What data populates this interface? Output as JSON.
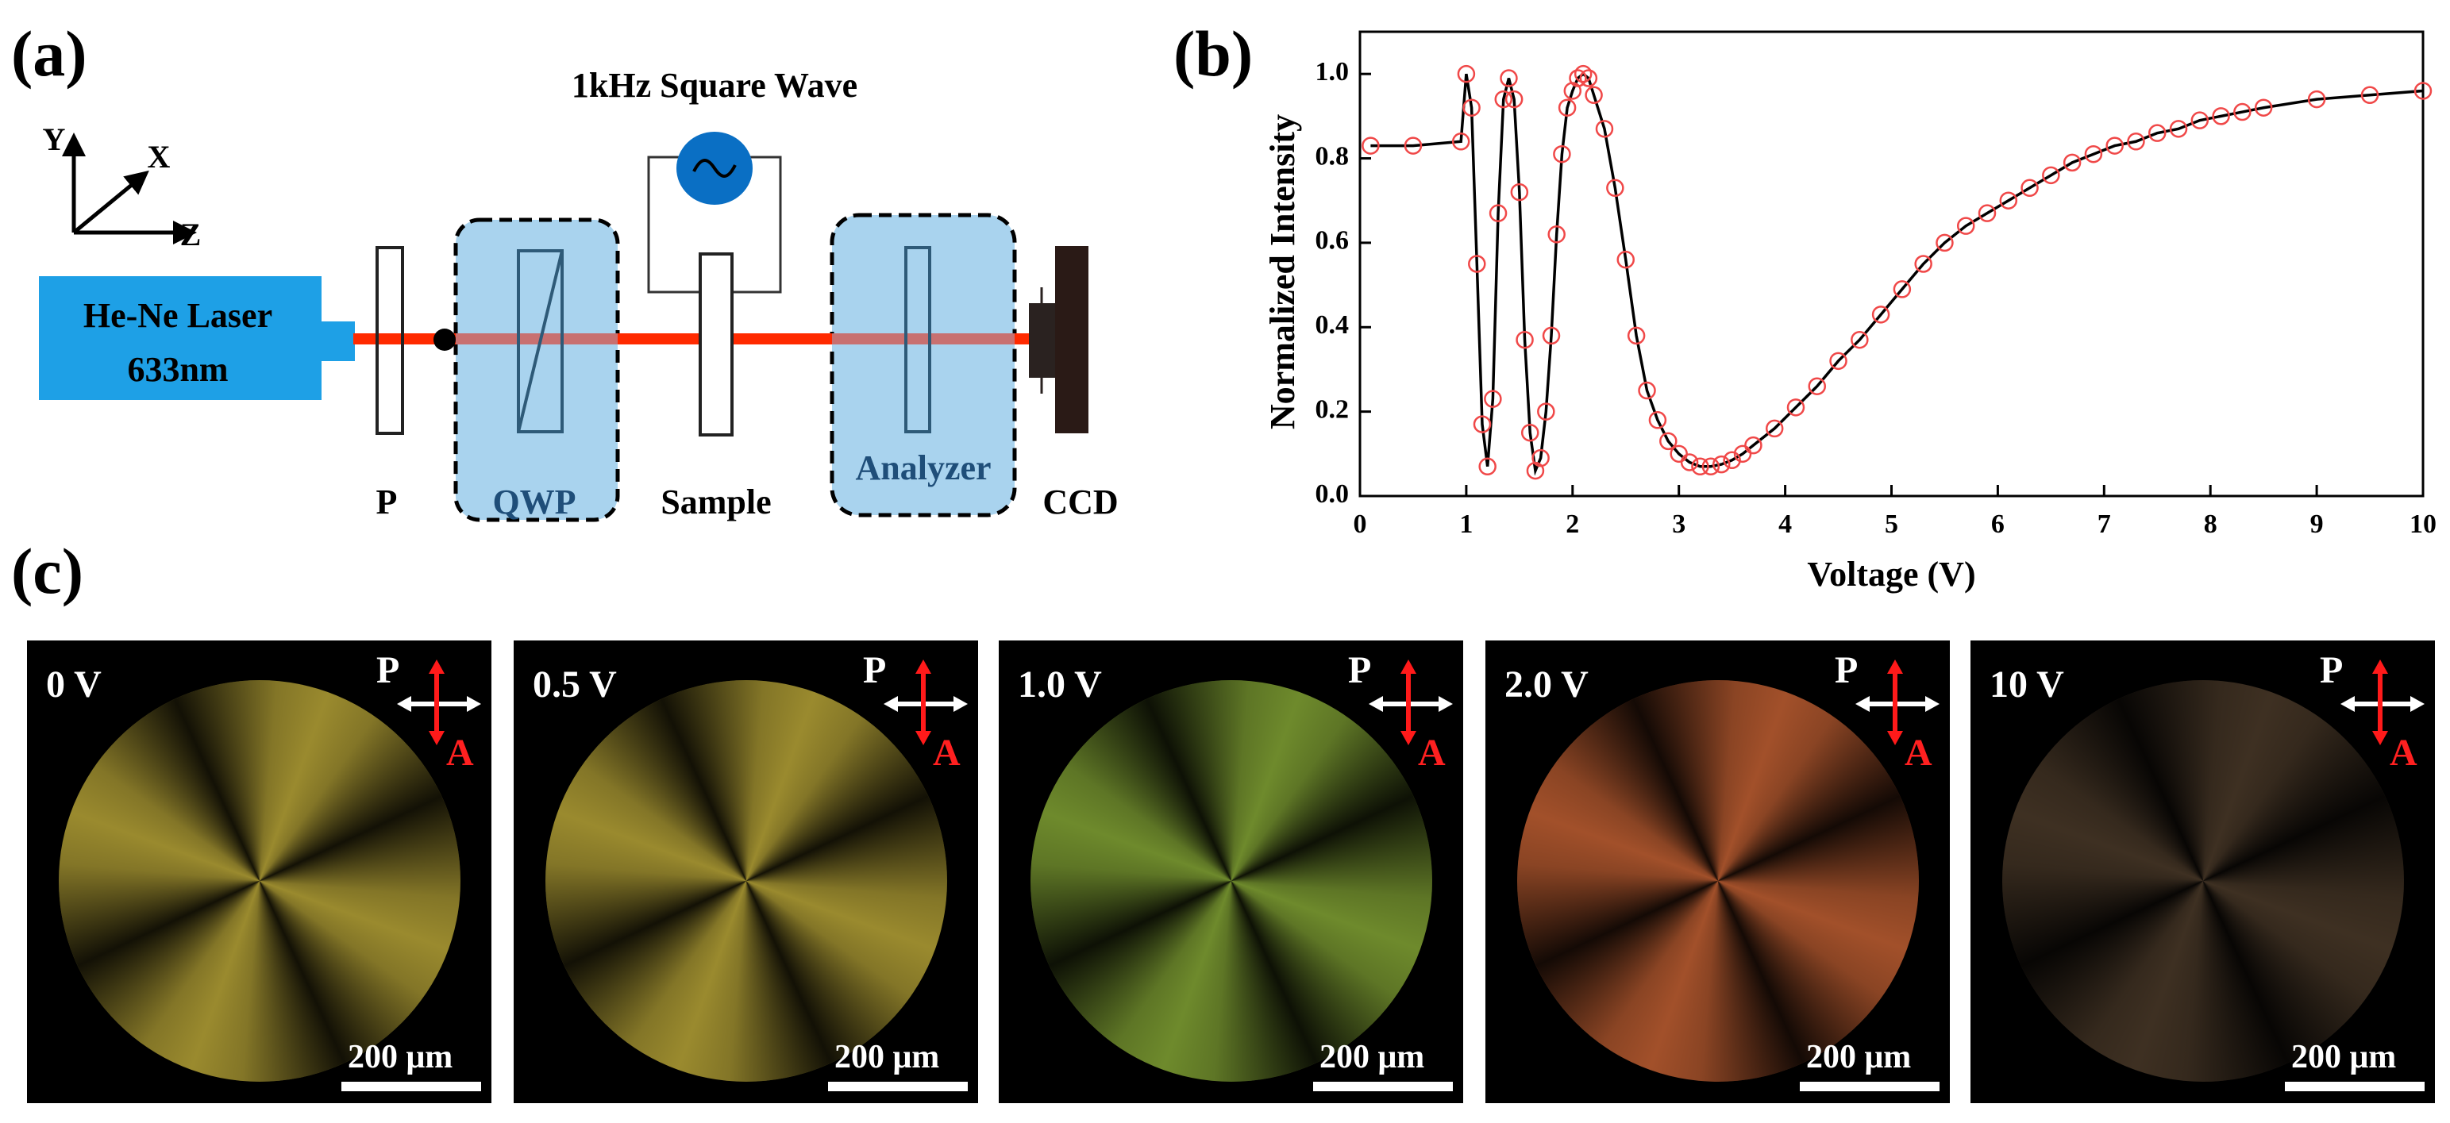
{
  "panel_labels": [
    "(a)",
    "(b)",
    "(c)"
  ],
  "setup": {
    "axes": [
      "Y",
      "X",
      "Z"
    ],
    "source_name": "He-Ne Laser",
    "source_wavelength": "633nm",
    "signal": "1kHz Square Wave",
    "components": [
      "P",
      "QWP",
      "Sample",
      "Analyzer",
      "CCD"
    ]
  },
  "chart_data": {
    "type": "line",
    "x_label": "Voltage (V)",
    "y_label": "Normalized Intensity",
    "xlim": [
      0,
      10
    ],
    "ylim": [
      0,
      1.1
    ],
    "xticks": [
      0,
      1,
      2,
      3,
      4,
      5,
      6,
      7,
      8,
      9,
      10
    ],
    "yticks": [
      {
        "value": 0,
        "label": "0.0"
      },
      0.2,
      0.4,
      0.6,
      0.8,
      {
        "value": 1,
        "label": "1.0"
      }
    ],
    "series": [
      {
        "line_color": "#000000",
        "marker_color": "#f04848",
        "x": [
          0.1,
          0.5,
          0.95,
          1.0,
          1.05,
          1.1,
          1.15,
          1.2,
          1.25,
          1.3,
          1.35,
          1.4,
          1.45,
          1.5,
          1.55,
          1.6,
          1.65,
          1.7,
          1.75,
          1.8,
          1.85,
          1.9,
          1.95,
          2.0,
          2.05,
          2.1,
          2.15,
          2.2,
          2.3,
          2.4,
          2.5,
          2.6,
          2.7,
          2.8,
          2.9,
          3.0,
          3.1,
          3.2,
          3.3,
          3.4,
          3.5,
          3.6,
          3.7,
          3.9,
          4.1,
          4.3,
          4.5,
          4.7,
          4.9,
          5.1,
          5.3,
          5.5,
          5.7,
          5.9,
          6.1,
          6.3,
          6.5,
          6.7,
          6.9,
          7.1,
          7.3,
          7.5,
          7.7,
          7.9,
          8.1,
          8.3,
          8.5,
          9.0,
          9.5,
          10.0
        ],
        "values": [
          0.83,
          0.83,
          0.84,
          1.0,
          0.92,
          0.55,
          0.17,
          0.07,
          0.23,
          0.67,
          0.94,
          0.99,
          0.94,
          0.72,
          0.37,
          0.15,
          0.06,
          0.09,
          0.2,
          0.38,
          0.62,
          0.81,
          0.92,
          0.96,
          0.99,
          1.0,
          0.99,
          0.95,
          0.87,
          0.73,
          0.56,
          0.38,
          0.25,
          0.18,
          0.13,
          0.1,
          0.08,
          0.07,
          0.07,
          0.075,
          0.085,
          0.1,
          0.12,
          0.16,
          0.21,
          0.26,
          0.32,
          0.37,
          0.43,
          0.49,
          0.55,
          0.6,
          0.64,
          0.67,
          0.7,
          0.73,
          0.76,
          0.79,
          0.81,
          0.83,
          0.84,
          0.86,
          0.87,
          0.89,
          0.9,
          0.91,
          0.92,
          0.94,
          0.95,
          0.96
        ]
      }
    ]
  },
  "micrographs": [
    {
      "voltage": "0 V",
      "polarizer": "P",
      "analyzer": "A",
      "scale_bar": "200 μm"
    },
    {
      "voltage": "0.5 V",
      "polarizer": "P",
      "analyzer": "A",
      "scale_bar": "200 μm"
    },
    {
      "voltage": "1.0 V",
      "polarizer": "P",
      "analyzer": "A",
      "scale_bar": "200 μm"
    },
    {
      "voltage": "2.0 V",
      "polarizer": "P",
      "analyzer": "A",
      "scale_bar": "200 μm"
    },
    {
      "voltage": "10 V",
      "polarizer": "P",
      "analyzer": "A",
      "scale_bar": "200 μm"
    }
  ]
}
